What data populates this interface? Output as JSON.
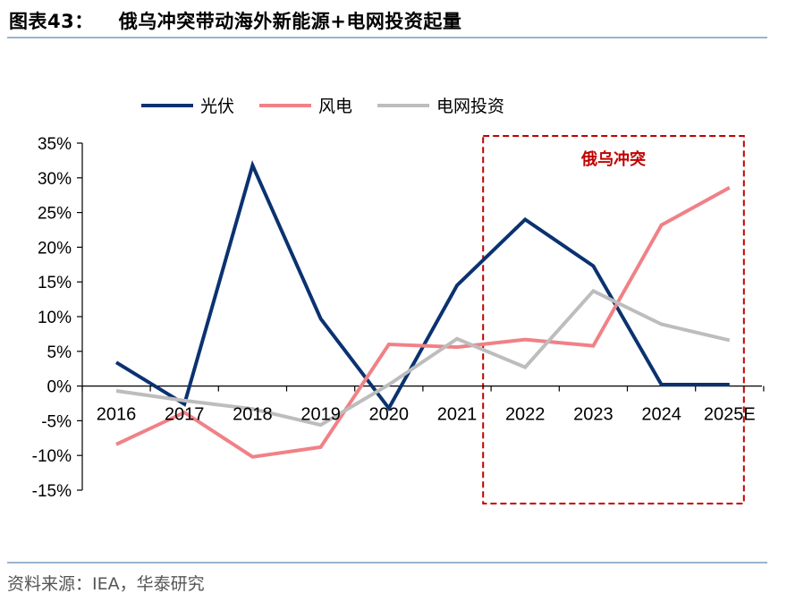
{
  "figure": {
    "label": "图表43：",
    "title": "俄乌冲突带动海外新能源+电网投资起量",
    "source": "资料来源：IEA，华泰研究"
  },
  "colors": {
    "solar": "#0b3270",
    "wind": "#f08187",
    "grid": "#bdbdbd",
    "highlight": "#c00000",
    "rule": "#9bb3cf"
  },
  "chart_data": {
    "type": "line",
    "categories": [
      "2016",
      "2017",
      "2018",
      "2019",
      "2020",
      "2021",
      "2022",
      "2023",
      "2024",
      "2025E"
    ],
    "series": [
      {
        "name": "光伏",
        "values": [
          3.4,
          -2.6,
          31.8,
          9.7,
          -3.2,
          14.5,
          24.0,
          17.3,
          0.2,
          0.2
        ]
      },
      {
        "name": "风电",
        "values": [
          -8.4,
          -3.8,
          -10.2,
          -8.8,
          6.0,
          5.6,
          6.7,
          5.8,
          23.2,
          28.6
        ]
      },
      {
        "name": "电网投资",
        "values": [
          -0.7,
          -2.1,
          -3.3,
          -5.6,
          0.2,
          6.8,
          2.7,
          13.7,
          8.9,
          6.6
        ]
      }
    ],
    "ylim": [
      -15,
      35
    ],
    "yticks": [
      "35%",
      "30%",
      "25%",
      "20%",
      "15%",
      "10%",
      "5%",
      "0%",
      "-5%",
      "-10%",
      "-15%"
    ],
    "ytick_values": [
      35,
      30,
      25,
      20,
      15,
      10,
      5,
      0,
      -5,
      -10,
      -15
    ],
    "legend_position": "top",
    "highlight": {
      "label": "俄乌冲突",
      "from": "2022",
      "to": "2025E"
    },
    "grid": false
  }
}
